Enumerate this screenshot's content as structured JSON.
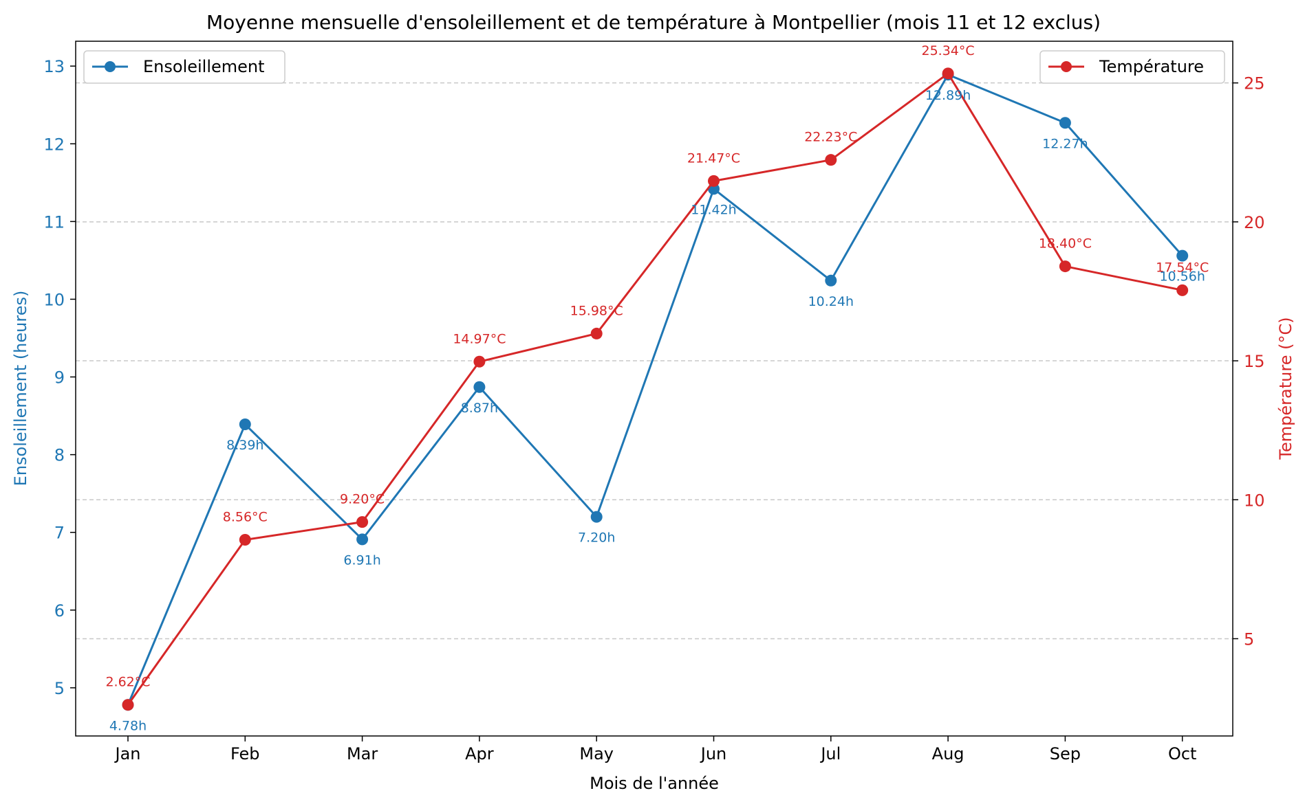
{
  "chart_data": {
    "type": "line",
    "title": "Moyenne mensuelle d'ensoleillement et de température à Montpellier (mois 11 et 12 exclus)",
    "xlabel": "Mois de l'année",
    "categories": [
      "Jan",
      "Feb",
      "Mar",
      "Apr",
      "May",
      "Jun",
      "Jul",
      "Aug",
      "Sep",
      "Oct"
    ],
    "y_left": {
      "label": "Ensoleillement (heures)",
      "lim": [
        4.38,
        13.32
      ],
      "ticks": [
        5,
        6,
        7,
        8,
        9,
        10,
        11,
        12,
        13
      ],
      "color": "#1f77b4"
    },
    "y_right": {
      "label": "Température (°C)",
      "lim": [
        1.5,
        26.5
      ],
      "ticks": [
        5,
        10,
        15,
        20,
        25
      ],
      "color": "#d62728"
    },
    "grid": "dashed horizontal lines at right-axis ticks",
    "series": [
      {
        "name": "Ensoleillement",
        "axis": "left",
        "color": "#1f77b4",
        "values": [
          4.78,
          8.39,
          6.91,
          8.87,
          7.2,
          11.42,
          10.24,
          12.89,
          12.27,
          10.56
        ],
        "labels": [
          "4.78h",
          "8.39h",
          "6.91h",
          "8.87h",
          "7.20h",
          "11.42h",
          "10.24h",
          "12.89h",
          "12.27h",
          "10.56h"
        ],
        "legend_position": "upper left"
      },
      {
        "name": "Température",
        "axis": "right",
        "color": "#d62728",
        "values": [
          2.62,
          8.56,
          9.2,
          14.97,
          15.98,
          21.47,
          22.23,
          25.34,
          18.4,
          17.54
        ],
        "labels": [
          "2.62°C",
          "8.56°C",
          "9.20°C",
          "14.97°C",
          "15.98°C",
          "21.47°C",
          "22.23°C",
          "25.34°C",
          "18.40°C",
          "17.54°C"
        ],
        "legend_position": "upper right"
      }
    ]
  }
}
